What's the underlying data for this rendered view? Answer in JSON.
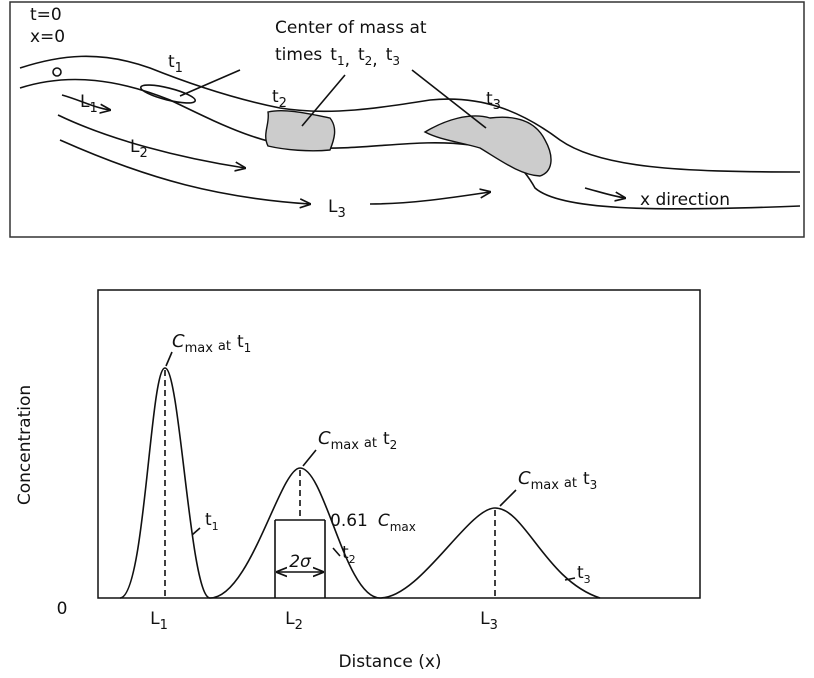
{
  "top_panel": {
    "origin": [
      "t=0",
      "x=0"
    ],
    "center_of_mass": {
      "text": "Center of mass at",
      "times": "times",
      "separator": ",",
      "labels": [
        {
          "base": "t",
          "sub": "1"
        },
        {
          "base": "t",
          "sub": "2"
        },
        {
          "base": "t",
          "sub": "3"
        }
      ]
    },
    "puff_labels": [
      {
        "base": "t",
        "sub": "1"
      },
      {
        "base": "t",
        "sub": "2"
      },
      {
        "base": "t",
        "sub": "3"
      }
    ],
    "distance_labels": [
      {
        "base": "L",
        "sub": "1"
      },
      {
        "base": "L",
        "sub": "2"
      },
      {
        "base": "L",
        "sub": "3"
      }
    ],
    "direction": "x direction"
  },
  "bottom_panel": {
    "y_label": "Concentration",
    "x_label": "Distance (x)",
    "origin": "0",
    "x_ticks": [
      {
        "base": "L",
        "sub": "1"
      },
      {
        "base": "L",
        "sub": "2"
      },
      {
        "base": "L",
        "sub": "3"
      }
    ],
    "peak_labels": [
      {
        "base": "C",
        "sub": "max",
        "at": "at",
        "t": "t",
        "t_sub": "1"
      },
      {
        "base": "C",
        "sub": "max",
        "at": "at",
        "t": "t",
        "t_sub": "2"
      },
      {
        "base": "C",
        "sub": "max",
        "at": "at",
        "t": "t",
        "t_sub": "3"
      }
    ],
    "curve_labels": [
      {
        "base": "t",
        "sub": "1"
      },
      {
        "base": "t",
        "sub": "2"
      },
      {
        "base": "t",
        "sub": "3"
      }
    ],
    "width_label": {
      "factor": "0.61",
      "base": "C",
      "sub": "max"
    },
    "sigma_label": "2σ"
  }
}
